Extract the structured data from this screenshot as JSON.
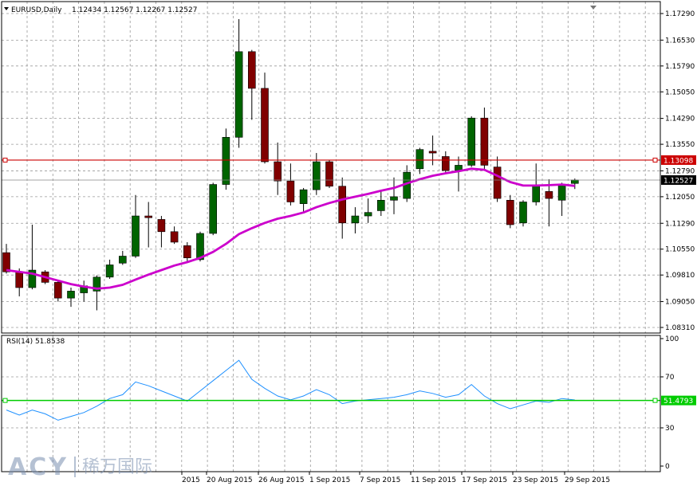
{
  "header": {
    "symbol": "EURUSD,Daily",
    "ohlc": "1.12434 1.12567 1.12267 1.12527"
  },
  "chart_data": {
    "type": "candlestick",
    "symbol": "EURUSD",
    "timeframe": "Daily",
    "price_ticks": [
      "1.17290",
      "1.16530",
      "1.15790",
      "1.15050",
      "1.14290",
      "1.13550",
      "1.12790",
      "1.12050",
      "1.11290",
      "1.10550",
      "1.09810",
      "1.09050",
      "1.08310"
    ],
    "price_range": [
      1.0831,
      1.1729
    ],
    "date_labels": [
      "2015",
      "20 Aug 2015",
      "26 Aug 2015",
      "1 Sep 2015",
      "7 Sep 2015",
      "11 Sep 2015",
      "17 Sep 2015",
      "23 Sep 2015",
      "29 Sep 2015"
    ],
    "candles": [
      {
        "o": 1.1045,
        "h": 1.107,
        "l": 1.0985,
        "c": 1.099
      },
      {
        "o": 1.099,
        "h": 1.1,
        "l": 1.092,
        "c": 1.0945
      },
      {
        "o": 1.0945,
        "h": 1.1125,
        "l": 1.094,
        "c": 1.0995
      },
      {
        "o": 1.099,
        "h": 1.0995,
        "l": 1.0955,
        "c": 1.096
      },
      {
        "o": 1.096,
        "h": 1.0965,
        "l": 1.0905,
        "c": 1.0915
      },
      {
        "o": 1.0915,
        "h": 1.0945,
        "l": 1.089,
        "c": 1.0935
      },
      {
        "o": 1.093,
        "h": 1.0965,
        "l": 1.0905,
        "c": 1.095
      },
      {
        "o": 1.0935,
        "h": 1.098,
        "l": 1.088,
        "c": 1.0975
      },
      {
        "o": 1.0975,
        "h": 1.1025,
        "l": 1.097,
        "c": 1.101
      },
      {
        "o": 1.1015,
        "h": 1.105,
        "l": 1.101,
        "c": 1.1035
      },
      {
        "o": 1.1035,
        "h": 1.121,
        "l": 1.103,
        "c": 1.115
      },
      {
        "o": 1.115,
        "h": 1.119,
        "l": 1.106,
        "c": 1.1145
      },
      {
        "o": 1.114,
        "h": 1.115,
        "l": 1.106,
        "c": 1.1105
      },
      {
        "o": 1.1105,
        "h": 1.112,
        "l": 1.107,
        "c": 1.1075
      },
      {
        "o": 1.1065,
        "h": 1.1075,
        "l": 1.102,
        "c": 1.103
      },
      {
        "o": 1.1025,
        "h": 1.1105,
        "l": 1.102,
        "c": 1.11
      },
      {
        "o": 1.11,
        "h": 1.1245,
        "l": 1.1095,
        "c": 1.124
      },
      {
        "o": 1.124,
        "h": 1.14,
        "l": 1.1225,
        "c": 1.1375
      },
      {
        "o": 1.1375,
        "h": 1.1713,
        "l": 1.1345,
        "c": 1.162
      },
      {
        "o": 1.162,
        "h": 1.1625,
        "l": 1.1425,
        "c": 1.1515
      },
      {
        "o": 1.1515,
        "h": 1.156,
        "l": 1.13,
        "c": 1.1305
      },
      {
        "o": 1.1305,
        "h": 1.136,
        "l": 1.121,
        "c": 1.125
      },
      {
        "o": 1.125,
        "h": 1.13,
        "l": 1.118,
        "c": 1.119
      },
      {
        "o": 1.1185,
        "h": 1.123,
        "l": 1.116,
        "c": 1.1225
      },
      {
        "o": 1.1225,
        "h": 1.133,
        "l": 1.121,
        "c": 1.1305
      },
      {
        "o": 1.1305,
        "h": 1.131,
        "l": 1.123,
        "c": 1.1235
      },
      {
        "o": 1.1235,
        "h": 1.126,
        "l": 1.1085,
        "c": 1.113
      },
      {
        "o": 1.113,
        "h": 1.1175,
        "l": 1.11,
        "c": 1.115
      },
      {
        "o": 1.115,
        "h": 1.12,
        "l": 1.113,
        "c": 1.116
      },
      {
        "o": 1.1165,
        "h": 1.122,
        "l": 1.115,
        "c": 1.1195
      },
      {
        "o": 1.1195,
        "h": 1.126,
        "l": 1.1155,
        "c": 1.1205
      },
      {
        "o": 1.12,
        "h": 1.1295,
        "l": 1.119,
        "c": 1.1275
      },
      {
        "o": 1.1285,
        "h": 1.1345,
        "l": 1.127,
        "c": 1.134
      },
      {
        "o": 1.1335,
        "h": 1.138,
        "l": 1.1295,
        "c": 1.133
      },
      {
        "o": 1.132,
        "h": 1.1335,
        "l": 1.127,
        "c": 1.128
      },
      {
        "o": 1.128,
        "h": 1.132,
        "l": 1.122,
        "c": 1.1295
      },
      {
        "o": 1.1295,
        "h": 1.1435,
        "l": 1.129,
        "c": 1.143
      },
      {
        "o": 1.143,
        "h": 1.146,
        "l": 1.128,
        "c": 1.1295
      },
      {
        "o": 1.129,
        "h": 1.132,
        "l": 1.119,
        "c": 1.12
      },
      {
        "o": 1.1195,
        "h": 1.121,
        "l": 1.1115,
        "c": 1.1125
      },
      {
        "o": 1.113,
        "h": 1.1195,
        "l": 1.112,
        "c": 1.119
      },
      {
        "o": 1.119,
        "h": 1.13,
        "l": 1.118,
        "c": 1.1235
      },
      {
        "o": 1.122,
        "h": 1.1255,
        "l": 1.112,
        "c": 1.12
      },
      {
        "o": 1.1195,
        "h": 1.1245,
        "l": 1.115,
        "c": 1.124
      },
      {
        "o": 1.1243,
        "h": 1.1257,
        "l": 1.1227,
        "c": 1.1253
      }
    ],
    "ma_values": [
      1.0995,
      1.099,
      1.0985,
      1.0975,
      1.0965,
      1.0955,
      1.0948,
      1.0942,
      1.0945,
      1.0953,
      1.0968,
      1.0982,
      1.0995,
      1.1008,
      1.1018,
      1.103,
      1.1047,
      1.107,
      1.1098,
      1.1115,
      1.113,
      1.1142,
      1.115,
      1.116,
      1.1175,
      1.1187,
      1.1197,
      1.1205,
      1.1213,
      1.1222,
      1.123,
      1.1243,
      1.1255,
      1.1265,
      1.1272,
      1.1278,
      1.1285,
      1.1282,
      1.1265,
      1.1247,
      1.1237,
      1.1237,
      1.1238,
      1.124,
      1.1236
    ],
    "hline_price": {
      "label": "1.13098",
      "value": 1.13098
    },
    "current_price": {
      "label": "1.12527",
      "value": 1.12527
    },
    "rsi": {
      "title": "RSI(14) 51.8538",
      "ticks": [
        "100",
        "70",
        "30",
        "0"
      ],
      "range": [
        0,
        100
      ],
      "level": {
        "label": "51.4793",
        "value": 51.4793
      },
      "values": [
        44,
        40,
        44,
        41,
        36,
        39,
        42,
        47,
        53,
        56,
        66,
        63,
        59,
        55,
        51,
        59,
        67,
        75,
        83,
        68,
        61,
        55,
        52,
        55,
        60,
        56,
        49,
        51,
        52,
        53,
        54,
        56,
        59,
        57,
        54,
        56,
        64,
        55,
        49,
        45,
        48,
        51,
        50,
        53,
        51.85
      ]
    },
    "colors": {
      "bull": "#006400",
      "bear": "#800000",
      "ma": "#cc00cc",
      "rsi": "#1e90ff",
      "hline": "#cc0000",
      "rsi_level": "#00cc00"
    }
  },
  "watermark": {
    "latin": "ACY",
    "cjk": "稀万国际"
  }
}
